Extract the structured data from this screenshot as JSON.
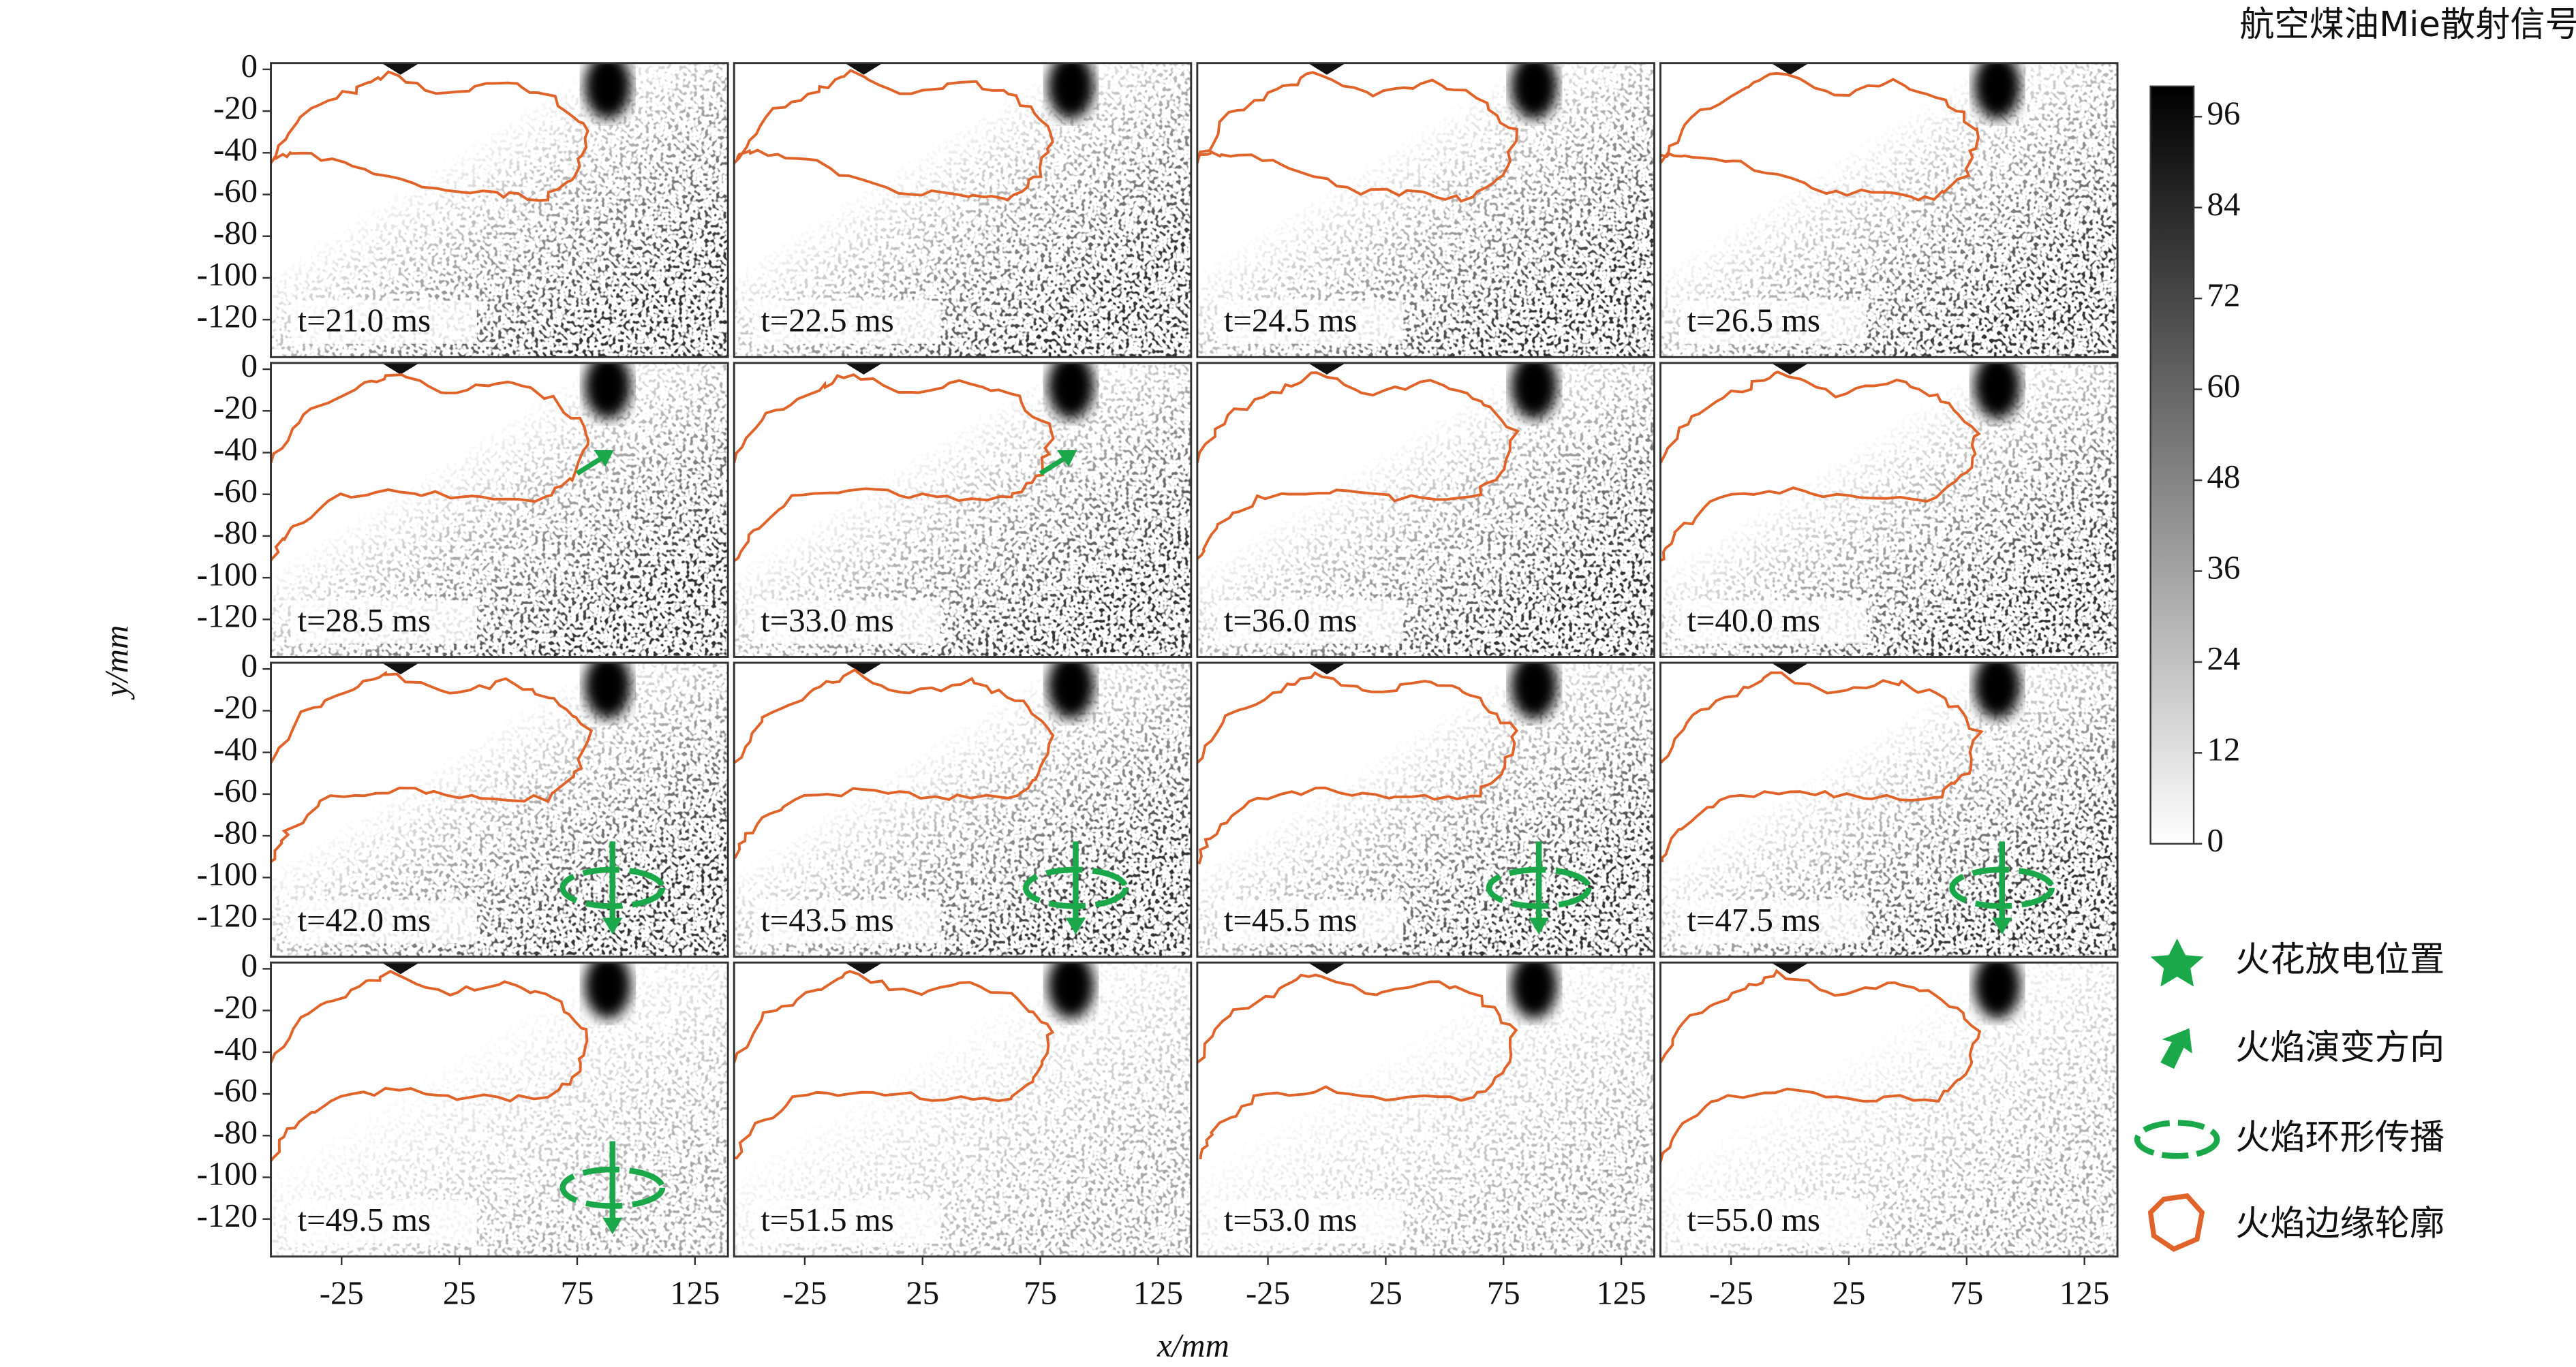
{
  "figure": {
    "colorbar": {
      "title": "航空煤油Mie散射信号",
      "lim": [
        0,
        100
      ],
      "ticks": [
        0,
        12,
        24,
        36,
        48,
        60,
        72,
        84,
        96
      ]
    },
    "x_axis": {
      "label": "x/mm",
      "lim": [
        -55,
        139
      ],
      "ticks": [
        -25,
        25,
        75,
        125
      ]
    },
    "y_axis": {
      "label": "y/mm",
      "lim": [
        -138,
        3
      ],
      "ticks": [
        0,
        -20,
        -40,
        -60,
        -80,
        -100,
        -120
      ]
    },
    "panels": [
      {
        "label": "t=21.0 ms"
      },
      {
        "label": "t=22.5 ms"
      },
      {
        "label": "t=24.5 ms"
      },
      {
        "label": "t=26.5 ms"
      },
      {
        "label": "t=28.5 ms"
      },
      {
        "label": "t=33.0 ms"
      },
      {
        "label": "t=36.0 ms"
      },
      {
        "label": "t=40.0 ms"
      },
      {
        "label": "t=42.0 ms"
      },
      {
        "label": "t=43.5 ms"
      },
      {
        "label": "t=45.5 ms"
      },
      {
        "label": "t=47.5 ms"
      },
      {
        "label": "t=49.5 ms"
      },
      {
        "label": "t=51.5 ms"
      },
      {
        "label": "t=53.0 ms"
      },
      {
        "label": "t=55.0 ms"
      }
    ],
    "legend": [
      {
        "label": "火花放电位置"
      },
      {
        "label": "火焰演变方向"
      },
      {
        "label": "火焰环形传播"
      },
      {
        "label": "火焰边缘轮廓"
      }
    ]
  }
}
